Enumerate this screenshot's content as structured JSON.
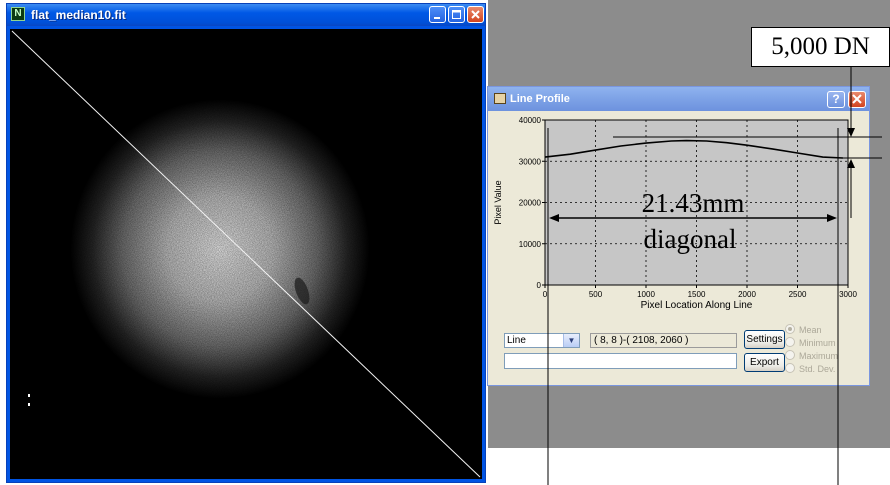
{
  "image_window": {
    "title": "flat_median10.fit",
    "buttons": [
      "minimize",
      "maximize",
      "close"
    ]
  },
  "line_profile": {
    "title": "Line Profile",
    "plot": {
      "ylabel": "Pixel Value",
      "xlabel": "Pixel Location Along Line",
      "y_ticks": [
        "40000",
        "30000",
        "20000",
        "10000",
        "0"
      ],
      "x_ticks": [
        "0",
        "500",
        "1000",
        "1500",
        "2000",
        "2500",
        "3000"
      ]
    },
    "mode_select": "Line",
    "coords": "( 8, 8 )-( 2108, 2060 )",
    "settings_label": "Settings",
    "export_label": "Export",
    "status_text": "",
    "stats": [
      "Mean",
      "Minimum",
      "Maximum",
      "Std. Dev."
    ]
  },
  "annotations": {
    "dn_label": "5,000 DN",
    "length_label": "21.43mm",
    "diagonal_label": "diagonal"
  },
  "chart_data": {
    "type": "line",
    "xlabel": "Pixel Location Along Line",
    "ylabel": "Pixel Value",
    "xlim": [
      0,
      3000
    ],
    "ylim": [
      0,
      40000
    ],
    "grid": true,
    "series": [
      {
        "x": [
          0,
          250,
          500,
          750,
          1000,
          1250,
          1400,
          1600,
          1800,
          2000,
          2250,
          2500,
          2750,
          2950
        ],
        "values": [
          31000,
          31700,
          32700,
          33700,
          34400,
          34900,
          35000,
          34900,
          34500,
          33900,
          33000,
          32000,
          31000,
          30800
        ]
      }
    ]
  }
}
